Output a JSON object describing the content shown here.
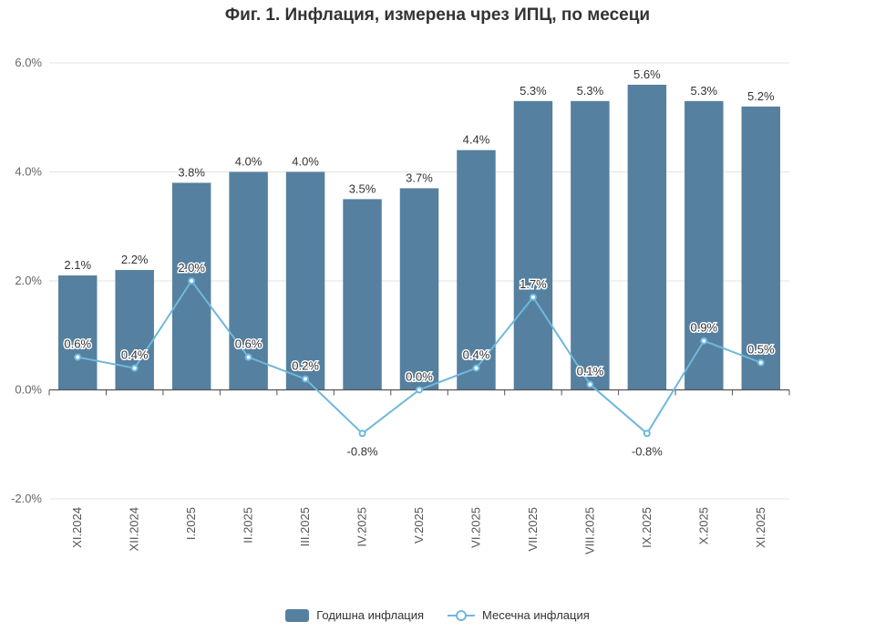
{
  "chart_data": {
    "type": "bar",
    "title": "Фиг. 1. Инфлация, измерена чрез ИПЦ, по месеци",
    "categories": [
      "XI.2024",
      "XII.2024",
      "I.2025",
      "II.2025",
      "III.2025",
      "IV.2025",
      "V.2025",
      "VI.2025",
      "VII.2025",
      "VIII.2025",
      "IX.2025",
      "X.2025",
      "XI.2025"
    ],
    "series": [
      {
        "name": "Годишна инфлация",
        "type": "bar",
        "color": "#5580a0",
        "values": [
          2.1,
          2.2,
          3.8,
          4.0,
          4.0,
          3.5,
          3.7,
          4.4,
          5.3,
          5.3,
          5.6,
          5.3,
          5.2
        ],
        "labels": [
          "2.1%",
          "2.2%",
          "3.8%",
          "4.0%",
          "4.0%",
          "3.5%",
          "3.7%",
          "4.4%",
          "5.3%",
          "5.3%",
          "5.6%",
          "5.3%",
          "5.2%"
        ]
      },
      {
        "name": "Месечна инфлация",
        "type": "line",
        "color": "#6fb8dc",
        "values": [
          0.6,
          0.4,
          2.0,
          0.6,
          0.2,
          -0.8,
          0.0,
          0.4,
          1.7,
          0.1,
          -0.8,
          0.9,
          0.5
        ],
        "labels": [
          "0.6%",
          "0.4%",
          "2.0%",
          "0.6%",
          "0.2%",
          "-0.8%",
          "0.0%",
          "0.4%",
          "1.7%",
          "0.1%",
          "-0.8%",
          "0.9%",
          "0.5%"
        ]
      }
    ],
    "ylim": [
      -2.0,
      6.0
    ],
    "yticks": [
      -2.0,
      0.0,
      2.0,
      4.0,
      6.0
    ],
    "ytick_labels": [
      "-2.0%",
      "0.0%",
      "2.0%",
      "4.0%",
      "6.0%"
    ],
    "xlabel": "",
    "ylabel": "",
    "grid": true,
    "legend_position": "bottom-center"
  }
}
